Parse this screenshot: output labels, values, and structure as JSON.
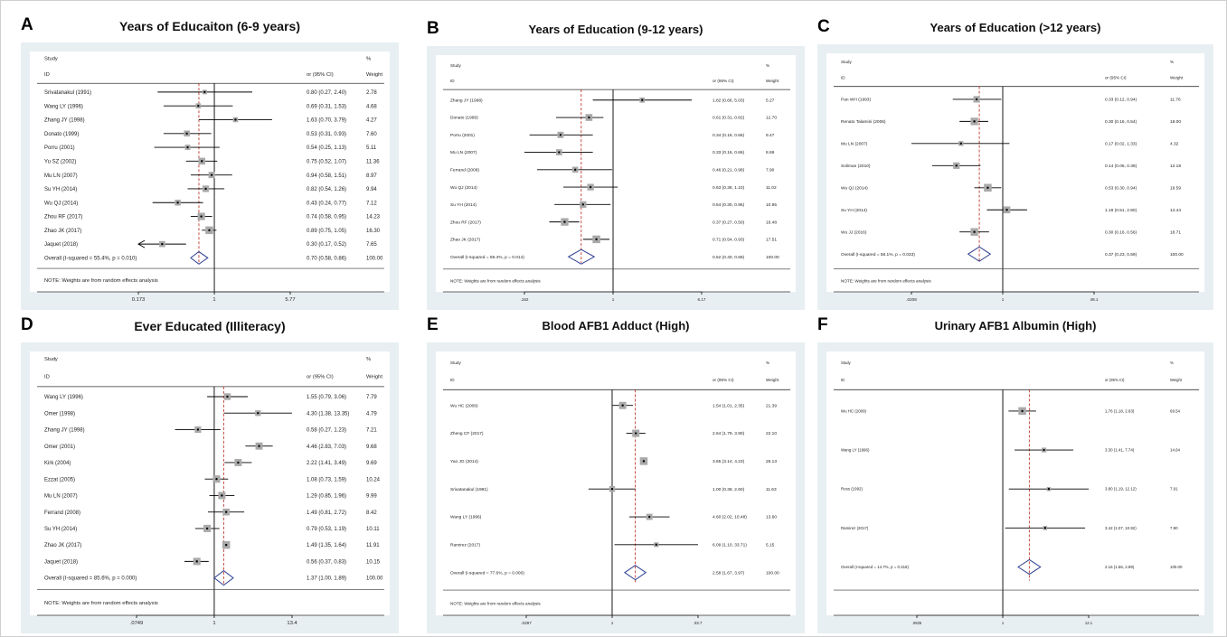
{
  "chart_data": [
    {
      "type": "forest",
      "panel": "A",
      "title": "Years of  Educaiton (6-9 years)",
      "col_study": "Study",
      "col_id": "ID",
      "col_or": "or (95% CI)",
      "col_pct": "%",
      "col_weight": "Weight",
      "note": "NOTE: Weights are from random effects analysis",
      "scale": "log",
      "xticks": [
        "0.173",
        "1",
        "5.77"
      ],
      "xtick_values": [
        0.173,
        1,
        5.77
      ],
      "studies": [
        {
          "id": "Srivatanakul (1991)",
          "or": 0.8,
          "lo": 0.27,
          "hi": 2.4,
          "ci": "0.80 (0.27, 2.40)",
          "weight": "2.78"
        },
        {
          "id": "Wang LY (1996)",
          "or": 0.69,
          "lo": 0.31,
          "hi": 1.53,
          "ci": "0.69 (0.31, 1.53)",
          "weight": "4.68"
        },
        {
          "id": "Zhang JY (1998)",
          "or": 1.63,
          "lo": 0.7,
          "hi": 3.79,
          "ci": "1.63 (0.70, 3.79)",
          "weight": "4.27"
        },
        {
          "id": "Donato (1999)",
          "or": 0.53,
          "lo": 0.31,
          "hi": 0.93,
          "ci": "0.53 (0.31, 0.93)",
          "weight": "7.60"
        },
        {
          "id": "Porru (2001)",
          "or": 0.54,
          "lo": 0.25,
          "hi": 1.13,
          "ci": "0.54 (0.25, 1.13)",
          "weight": "5.11"
        },
        {
          "id": "Yu SZ (2002)",
          "or": 0.75,
          "lo": 0.52,
          "hi": 1.07,
          "ci": "0.75 (0.52, 1.07)",
          "weight": "11.36"
        },
        {
          "id": "Mu LN (2007)",
          "or": 0.94,
          "lo": 0.58,
          "hi": 1.51,
          "ci": "0.94 (0.58, 1.51)",
          "weight": "8.97"
        },
        {
          "id": "Su YH (2014)",
          "or": 0.82,
          "lo": 0.54,
          "hi": 1.26,
          "ci": "0.82 (0.54, 1.26)",
          "weight": "9.94"
        },
        {
          "id": "Wu QJ (2014)",
          "or": 0.43,
          "lo": 0.24,
          "hi": 0.77,
          "ci": "0.43 (0.24, 0.77)",
          "weight": "7.12"
        },
        {
          "id": "Zhou RF (2017)",
          "or": 0.74,
          "lo": 0.58,
          "hi": 0.95,
          "ci": "0.74 (0.58, 0.95)",
          "weight": "14.23"
        },
        {
          "id": "Zhao JK (2017)",
          "or": 0.89,
          "lo": 0.75,
          "hi": 1.05,
          "ci": "0.89 (0.75, 1.05)",
          "weight": "16.30"
        },
        {
          "id": "Jaquet (2018)",
          "or": 0.3,
          "lo": 0.17,
          "hi": 0.52,
          "ci": "0.30 (0.17, 0.52)",
          "weight": "7.65",
          "arrow_left": true
        }
      ],
      "overall": {
        "label": "Overall  (I-squared = 55.4%, p = 0.010)",
        "or": 0.7,
        "lo": 0.58,
        "hi": 0.86,
        "ci": "0.70 (0.58, 0.86)",
        "weight": "100.00"
      }
    },
    {
      "type": "forest",
      "panel": "B",
      "title": "Years of Education (9-12 years)",
      "col_study": "Study",
      "col_id": "ID",
      "col_or": "or (95% CI)",
      "col_pct": "%",
      "col_weight": "Weight",
      "note": "NOTE: Weights are from random effects analysis",
      "scale": "log",
      "xticks": [
        ".162",
        "1",
        "6.17"
      ],
      "xtick_values": [
        0.162,
        1,
        6.17
      ],
      "studies": [
        {
          "id": "Zhang JY (1998)",
          "or": 1.82,
          "lo": 0.66,
          "hi": 5.03,
          "ci": "1.82 (0.66, 5.03)",
          "weight": "5.27"
        },
        {
          "id": "Donato (1999)",
          "or": 0.61,
          "lo": 0.31,
          "hi": 0.82,
          "ci": "0.61 (0.31, 0.82)",
          "weight": "12.70"
        },
        {
          "id": "Porru (2001)",
          "or": 0.34,
          "lo": 0.18,
          "hi": 0.66,
          "ci": "0.34 (0.18, 0.66)",
          "weight": "9.47"
        },
        {
          "id": "Mu LN (2007)",
          "or": 0.33,
          "lo": 0.16,
          "hi": 0.66,
          "ci": "0.33 (0.16, 0.66)",
          "weight": "8.69"
        },
        {
          "id": "Ferrand (2008)",
          "or": 0.46,
          "lo": 0.21,
          "hi": 0.98,
          "ci": "0.46 (0.21, 0.98)",
          "weight": "7.90"
        },
        {
          "id": "Wu QJ (2014)",
          "or": 0.63,
          "lo": 0.36,
          "hi": 1.1,
          "ci": "0.63 (0.36, 1.10)",
          "weight": "11.02"
        },
        {
          "id": "Su YH (2014)",
          "or": 0.54,
          "lo": 0.3,
          "hi": 0.95,
          "ci": "0.54 (0.30, 0.95)",
          "weight": "10.95"
        },
        {
          "id": "Zhou RF (2017)",
          "or": 0.37,
          "lo": 0.27,
          "hi": 0.5,
          "ci": "0.37 (0.27, 0.50)",
          "weight": "16.48"
        },
        {
          "id": "Zhao JK (2017)",
          "or": 0.71,
          "lo": 0.54,
          "hi": 0.93,
          "ci": "0.71 (0.54, 0.93)",
          "weight": "17.51"
        }
      ],
      "overall": {
        "label": "Overall  (I-squared = 59.4%, p = 0.014)",
        "or": 0.52,
        "lo": 0.4,
        "hi": 0.68,
        "ci": "0.52 (0.40, 0.68)",
        "weight": "100.00"
      }
    },
    {
      "type": "forest",
      "panel": "C",
      "title": "Years of Education (>12 years)",
      "col_study": "Study",
      "col_id": "ID",
      "col_or": "or (95% CI)",
      "col_pct": "%",
      "col_weight": "Weight",
      "note": "NOTE: Weights are from random effects analysis",
      "scale": "log",
      "xticks": [
        ".0208",
        "1",
        "48.1"
      ],
      "xtick_values": [
        0.0208,
        1,
        48.1
      ],
      "studies": [
        {
          "id": "Pan WH (1993)",
          "or": 0.33,
          "lo": 0.12,
          "hi": 0.94,
          "ci": "0.33 (0.12, 0.94)",
          "weight": "11.76"
        },
        {
          "id": "Renato Talamini (2006)",
          "or": 0.3,
          "lo": 0.16,
          "hi": 0.54,
          "ci": "0.30 (0.16, 0.54)",
          "weight": "18.00"
        },
        {
          "id": "Mu LN (2007)",
          "or": 0.17,
          "lo": 0.02,
          "hi": 1.33,
          "ci": "0.17 (0.02, 1.33)",
          "weight": "4.32"
        },
        {
          "id": "Soliman (2010)",
          "or": 0.14,
          "lo": 0.05,
          "hi": 0.39,
          "ci": "0.14 (0.05, 0.39)",
          "weight": "12.18"
        },
        {
          "id": "Wu QJ (2014)",
          "or": 0.53,
          "lo": 0.3,
          "hi": 0.94,
          "ci": "0.53 (0.30, 0.94)",
          "weight": "19.59"
        },
        {
          "id": "Su YH (2014)",
          "or": 1.19,
          "lo": 0.51,
          "hi": 2.8,
          "ci": "1.19 (0.51, 2.80)",
          "weight": "14.44"
        },
        {
          "id": "Wu JJ (2016)",
          "or": 0.3,
          "lo": 0.16,
          "hi": 0.56,
          "ci": "0.30 (0.16, 0.56)",
          "weight": "18.71"
        }
      ],
      "overall": {
        "label": "Overall  (I-squared = 56.1%, p = 0.033)",
        "or": 0.37,
        "lo": 0.23,
        "hi": 0.59,
        "ci": "0.37 (0.23, 0.59)",
        "weight": "100.00"
      }
    },
    {
      "type": "forest",
      "panel": "D",
      "title": "Ever Educated (Illiteracy)",
      "col_study": "Study",
      "col_id": "ID",
      "col_or": "or (95% CI)",
      "col_pct": "%",
      "col_weight": "Weight",
      "note": "NOTE: Weights are from random effects analysis",
      "scale": "log",
      "xticks": [
        ".0749",
        "1",
        "13.4"
      ],
      "xtick_values": [
        0.0749,
        1,
        13.4
      ],
      "studies": [
        {
          "id": "Wang LY (1996)",
          "or": 1.55,
          "lo": 0.79,
          "hi": 3.06,
          "ci": "1.55 (0.79, 3.06)",
          "weight": "7.79"
        },
        {
          "id": "Omer (1998)",
          "or": 4.3,
          "lo": 1.38,
          "hi": 13.35,
          "ci": "4.30 (1.38, 13.35)",
          "weight": "4.79"
        },
        {
          "id": "Zhang JY (1998)",
          "or": 0.58,
          "lo": 0.27,
          "hi": 1.23,
          "ci": "0.58 (0.27, 1.23)",
          "weight": "7.21"
        },
        {
          "id": "Omer (2001)",
          "or": 4.46,
          "lo": 2.83,
          "hi": 7.03,
          "ci": "4.46 (2.83, 7.03)",
          "weight": "9.68"
        },
        {
          "id": "Kirk (2004)",
          "or": 2.22,
          "lo": 1.41,
          "hi": 3.49,
          "ci": "2.22 (1.41, 3.49)",
          "weight": "9.69"
        },
        {
          "id": "Ezzat (2005)",
          "or": 1.08,
          "lo": 0.73,
          "hi": 1.59,
          "ci": "1.08 (0.73, 1.59)",
          "weight": "10.24"
        },
        {
          "id": "Mu LN (2007)",
          "or": 1.29,
          "lo": 0.85,
          "hi": 1.96,
          "ci": "1.29 (0.85, 1.96)",
          "weight": "9.99"
        },
        {
          "id": "Ferrand (2008)",
          "or": 1.49,
          "lo": 0.81,
          "hi": 2.72,
          "ci": "1.49 (0.81, 2.72)",
          "weight": "8.42"
        },
        {
          "id": "Su YH (2014)",
          "or": 0.79,
          "lo": 0.53,
          "hi": 1.19,
          "ci": "0.79 (0.53, 1.19)",
          "weight": "10.11"
        },
        {
          "id": "Zhao JK (2017)",
          "or": 1.49,
          "lo": 1.35,
          "hi": 1.64,
          "ci": "1.49 (1.35, 1.64)",
          "weight": "11.91"
        },
        {
          "id": "Jaquet (2018)",
          "or": 0.56,
          "lo": 0.37,
          "hi": 0.83,
          "ci": "0.56 (0.37, 0.83)",
          "weight": "10.15"
        }
      ],
      "overall": {
        "label": "Overall  (I-squared = 85.6%, p = 0.000)",
        "or": 1.37,
        "lo": 1.0,
        "hi": 1.89,
        "ci": "1.37 (1.00, 1.89)",
        "weight": "100.00"
      }
    },
    {
      "type": "forest",
      "panel": "E",
      "title": "Blood AFB1 Adduct (High)",
      "col_study": "Study",
      "col_id": "ID",
      "col_or": "or (95% CI)",
      "col_pct": "%",
      "col_weight": "Weight",
      "note": "NOTE: Weights are from random effects analysis",
      "scale": "log",
      "xticks": [
        ".0297",
        "1",
        "33.7"
      ],
      "xtick_values": [
        0.0297,
        1,
        33.7
      ],
      "studies": [
        {
          "id": "Wu HC (2009)",
          "or": 1.54,
          "lo": 1.01,
          "hi": 2.35,
          "ci": "1.54 (1.01, 2.35)",
          "weight": "21.39"
        },
        {
          "id": "Zheng CF (2017)",
          "or": 2.64,
          "lo": 1.79,
          "hi": 3.9,
          "ci": "2.64 (1.79, 3.90)",
          "weight": "22.10"
        },
        {
          "id": "Yao JG (2014)",
          "or": 3.65,
          "lo": 3.14,
          "hi": 4.23,
          "ci": "3.65 (3.14, 4.23)",
          "weight": "26.13"
        },
        {
          "id": "Srivatanakul (1991)",
          "or": 1.0,
          "lo": 0.38,
          "hi": 2.6,
          "ci": "1.00 (0.38, 2.60)",
          "weight": "11.63"
        },
        {
          "id": "Wang LY (1996)",
          "or": 4.6,
          "lo": 2.02,
          "hi": 10.48,
          "ci": "4.60 (2.02, 10.48)",
          "weight": "13.60"
        },
        {
          "id": "Ramirez (2017)",
          "or": 6.09,
          "lo": 1.1,
          "hi": 33.71,
          "ci": "6.09 (1.10, 33.71)",
          "weight": "5.15"
        }
      ],
      "overall": {
        "label": "Overall  (I-squared = 77.6%, p = 0.000)",
        "or": 2.58,
        "lo": 1.67,
        "hi": 3.97,
        "ci": "2.58 (1.67, 3.97)",
        "weight": "100.00"
      }
    },
    {
      "type": "forest",
      "panel": "F",
      "title": "Urinary AFB1 Albumin (High)",
      "col_study": "Study",
      "col_id": "ID",
      "col_or": "or (95% CI)",
      "col_pct": "%",
      "col_weight": "Weight",
      "note": "",
      "scale": "log",
      "xticks": [
        ".0825",
        "1",
        "12.1"
      ],
      "xtick_values": [
        0.0825,
        1,
        12.1
      ],
      "studies": [
        {
          "id": "Wu HC (2009)",
          "or": 1.76,
          "lo": 1.18,
          "hi": 2.63,
          "ci": "1.76 (1.18, 2.63)",
          "weight": "69.54"
        },
        {
          "id": "Wang LY (1996)",
          "or": 3.3,
          "lo": 1.41,
          "hi": 7.74,
          "ci": "3.30 (1.41, 7.74)",
          "weight": "14.64"
        },
        {
          "id": "Ross (1992)",
          "or": 3.8,
          "lo": 1.19,
          "hi": 12.12,
          "ci": "3.80 (1.19, 12.12)",
          "weight": "7.91"
        },
        {
          "id": "Ramirez (2017)",
          "or": 3.42,
          "lo": 1.07,
          "hi": 10.92,
          "ci": "3.42 (1.07, 10.92)",
          "weight": "7.90"
        }
      ],
      "overall": {
        "label": "Overall  (I-squared = 14.7%, p = 0.318)",
        "or": 2.16,
        "lo": 1.56,
        "hi": 2.99,
        "ci": "2.16 (1.56, 2.99)",
        "weight": "100.00"
      }
    }
  ]
}
